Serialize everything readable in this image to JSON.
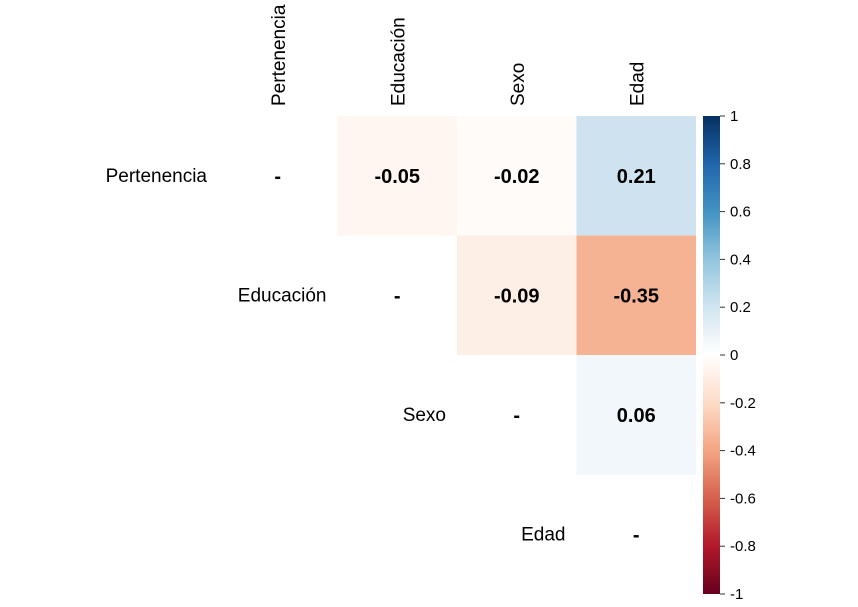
{
  "chart_data": {
    "type": "heatmap",
    "title": "",
    "variables": [
      "Pertenencia",
      "Educación",
      "Sexo",
      "Edad"
    ],
    "matrix_upper": [
      {
        "row": "Pertenencia",
        "col": "Educación",
        "value": -0.05,
        "label": "-0.05"
      },
      {
        "row": "Pertenencia",
        "col": "Sexo",
        "value": -0.02,
        "label": "-0.02"
      },
      {
        "row": "Pertenencia",
        "col": "Edad",
        "value": 0.21,
        "label": "0.21"
      },
      {
        "row": "Educación",
        "col": "Sexo",
        "value": -0.09,
        "label": "-0.09"
      },
      {
        "row": "Educación",
        "col": "Edad",
        "value": -0.35,
        "label": "-0.35"
      },
      {
        "row": "Sexo",
        "col": "Edad",
        "value": 0.06,
        "label": "0.06"
      }
    ],
    "diagonal_label": "-",
    "colorbar": {
      "range": [
        -1,
        1
      ],
      "ticks": [
        1,
        0.8,
        0.6,
        0.4,
        0.2,
        0,
        -0.2,
        -0.4,
        -0.6,
        -0.8,
        -1
      ],
      "tick_labels": [
        "1",
        "0.8",
        "0.6",
        "0.4",
        "0.2",
        "0",
        "-0.2",
        "-0.4",
        "-0.6",
        "-0.8",
        "-1"
      ],
      "colors": [
        "#67001F",
        "#B2182B",
        "#D6604D",
        "#F4A582",
        "#FDDBC7",
        "#FFFFFF",
        "#D1E5F0",
        "#92C5DE",
        "#4393C3",
        "#2166AC",
        "#053061"
      ]
    }
  }
}
